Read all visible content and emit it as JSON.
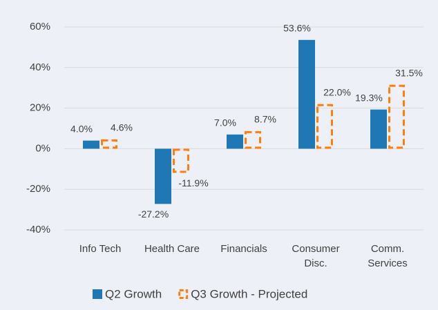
{
  "chart_data": {
    "type": "bar",
    "categories": [
      "Info Tech",
      "Health Care",
      "Financials",
      "Consumer Disc.",
      "Comm. Services"
    ],
    "series": [
      {
        "name": "Q2 Growth",
        "color": "#1f77b4",
        "style": "solid",
        "values": [
          4.0,
          -27.2,
          7.0,
          53.6,
          19.3
        ],
        "value_labels": [
          "4.0%",
          "-27.2%",
          "7.0%",
          "53.6%",
          "19.3%"
        ]
      },
      {
        "name": "Q3 Growth - Projected",
        "color": "#ff7f0e",
        "style": "dashed",
        "values": [
          4.6,
          -11.9,
          8.7,
          22.0,
          31.5
        ],
        "value_labels": [
          "4.6%",
          "-11.9%",
          "8.7%",
          "22.0%",
          "31.5%"
        ]
      }
    ],
    "ylim": [
      -40,
      60
    ],
    "yticks": [
      {
        "value": -40,
        "label": "-40%"
      },
      {
        "value": -20,
        "label": "-20%"
      },
      {
        "value": 0,
        "label": "0%"
      },
      {
        "value": 20,
        "label": "20%"
      },
      {
        "value": 40,
        "label": "40%"
      },
      {
        "value": 60,
        "label": "60%"
      }
    ],
    "grid": true,
    "legend": "bottom"
  }
}
